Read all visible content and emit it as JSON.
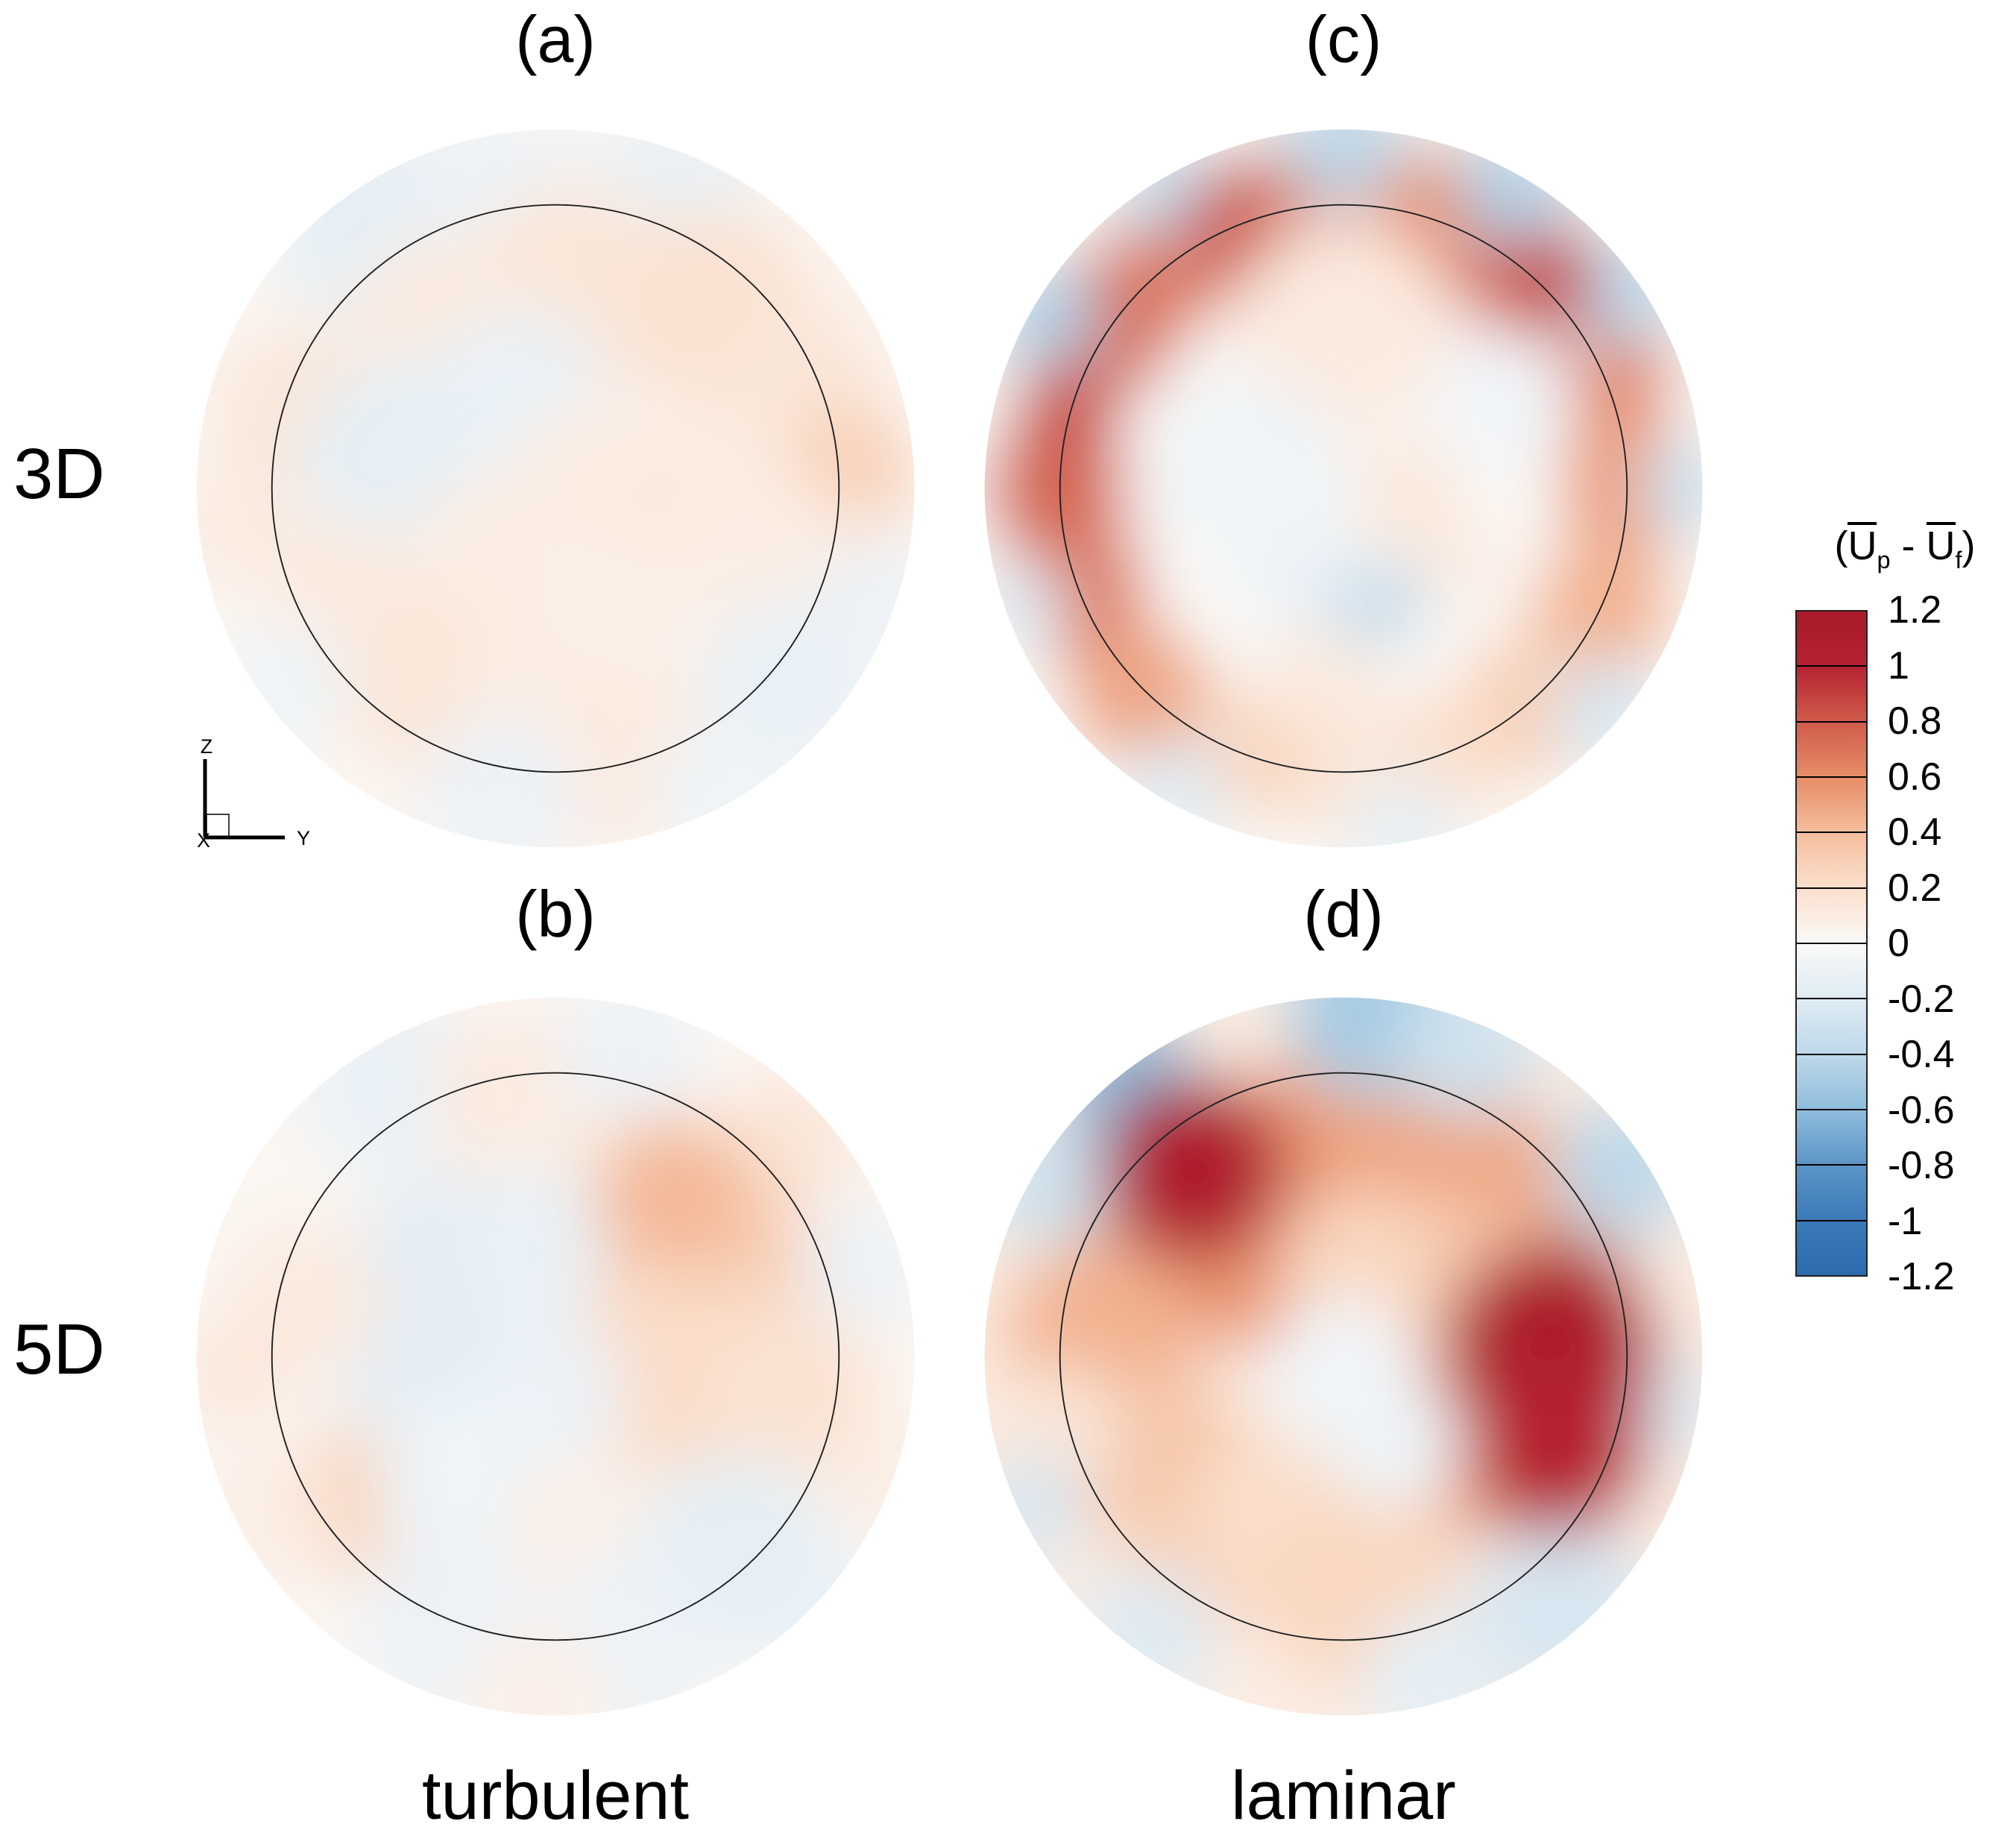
{
  "figure": {
    "labels": {
      "panel_a": "(a)",
      "panel_b": "(b)",
      "panel_c": "(c)",
      "panel_d": "(d)",
      "row_3d": "3D",
      "row_5d": "5D",
      "col_turbulent": "turbulent",
      "col_laminar": "laminar"
    },
    "axes_indicator": {
      "z": "Z",
      "y": "Y",
      "x": "X"
    }
  },
  "colorbar_title": {
    "open": "(",
    "u1": "U",
    "p": "p",
    "minus": " - ",
    "u2": "U",
    "f": "f",
    "close": ")"
  },
  "chart_data": {
    "type": "heatmap",
    "subtype": "circular-contour-grid",
    "quantity_label": "(Up - Uf)",
    "rows": [
      "3D",
      "5D"
    ],
    "columns": [
      "turbulent",
      "laminar"
    ],
    "inner_circle_radius_ratio": 0.79,
    "colorbar": {
      "label": "(Up - Uf)",
      "min": -1.2,
      "max": 1.2,
      "step": 0.2,
      "ticks": [
        "1.2",
        "1",
        "0.8",
        "0.6",
        "0.4",
        "0.2",
        "0",
        "-0.2",
        "-0.4",
        "-0.6",
        "-0.8",
        "-1",
        "-1.2"
      ],
      "colormap_stops": [
        [
          -1.2,
          "#2C6BAD"
        ],
        [
          -1.0,
          "#3A7AB8"
        ],
        [
          -0.8,
          "#5B94C6"
        ],
        [
          -0.6,
          "#8FBDDC"
        ],
        [
          -0.4,
          "#BDD8E9"
        ],
        [
          -0.2,
          "#DFEBF3"
        ],
        [
          -0.05,
          "#F2F6F9"
        ],
        [
          0.0,
          "#FAF9F7"
        ],
        [
          0.05,
          "#FBF4EF"
        ],
        [
          0.2,
          "#FADFCC"
        ],
        [
          0.4,
          "#F5BE9D"
        ],
        [
          0.6,
          "#E78C67"
        ],
        [
          0.8,
          "#D05B4B"
        ],
        [
          1.0,
          "#B52232"
        ],
        [
          1.2,
          "#A9192A"
        ]
      ]
    },
    "outline_color": "#222222",
    "blur": 0.09,
    "blob_format": "[cx, cy, radius, value] in unit-circle coordinates (y positive downward), value in colorbar units",
    "panels": [
      {
        "id": "a",
        "label": "(a)",
        "row": "3D",
        "column": "turbulent",
        "base_value": 0.03,
        "blobs": [
          [
            -0.5,
            -0.72,
            0.28,
            -0.15
          ],
          [
            -0.15,
            -0.82,
            0.22,
            -0.1
          ],
          [
            0.32,
            -0.8,
            0.25,
            -0.12
          ],
          [
            0.05,
            -0.55,
            0.3,
            0.15
          ],
          [
            -0.32,
            -0.45,
            0.25,
            0.12
          ],
          [
            0.45,
            -0.5,
            0.28,
            0.18
          ],
          [
            0.7,
            -0.3,
            0.22,
            0.15
          ],
          [
            0.82,
            -0.05,
            0.18,
            0.3
          ],
          [
            -0.7,
            -0.2,
            0.25,
            0.15
          ],
          [
            -0.9,
            0.1,
            0.16,
            0.12
          ],
          [
            -0.4,
            -0.05,
            0.32,
            -0.15
          ],
          [
            -0.1,
            -0.25,
            0.25,
            -0.12
          ],
          [
            0.1,
            -0.05,
            0.2,
            0.1
          ],
          [
            0.35,
            0.05,
            0.25,
            0.12
          ],
          [
            0.6,
            0.2,
            0.25,
            0.1
          ],
          [
            -0.15,
            0.2,
            0.25,
            0.1
          ],
          [
            -0.6,
            0.3,
            0.22,
            0.12
          ],
          [
            -0.35,
            0.55,
            0.25,
            0.15
          ],
          [
            0.0,
            0.5,
            0.25,
            0.1
          ],
          [
            0.3,
            0.45,
            0.22,
            0.08
          ],
          [
            0.65,
            0.55,
            0.25,
            -0.12
          ],
          [
            0.9,
            0.3,
            0.16,
            -0.1
          ],
          [
            0.15,
            0.75,
            0.25,
            0.12
          ],
          [
            -0.15,
            0.85,
            0.22,
            -0.1
          ],
          [
            0.45,
            0.85,
            0.18,
            -0.08
          ],
          [
            -0.75,
            0.55,
            0.18,
            -0.08
          ]
        ]
      },
      {
        "id": "c",
        "label": "(c)",
        "row": "3D",
        "column": "laminar",
        "base_value": 0.0,
        "blobs": [
          [
            0.0,
            -0.8,
            0.22,
            0.7
          ],
          [
            0.27,
            -0.75,
            0.2,
            0.6
          ],
          [
            0.51,
            -0.61,
            0.2,
            0.75
          ],
          [
            0.72,
            -0.34,
            0.2,
            0.65
          ],
          [
            0.8,
            0.0,
            0.2,
            0.55
          ],
          [
            0.72,
            0.34,
            0.2,
            0.45
          ],
          [
            0.51,
            0.61,
            0.2,
            0.3
          ],
          [
            0.27,
            0.75,
            0.18,
            0.2
          ],
          [
            0.0,
            0.8,
            0.2,
            0.15
          ],
          [
            -0.27,
            0.75,
            0.18,
            0.25
          ],
          [
            -0.57,
            0.57,
            0.2,
            0.5
          ],
          [
            -0.75,
            0.27,
            0.2,
            0.7
          ],
          [
            -0.8,
            0.0,
            0.2,
            0.75
          ],
          [
            -0.65,
            -0.46,
            0.2,
            0.75
          ],
          [
            -0.46,
            -0.66,
            0.2,
            0.7
          ],
          [
            -0.27,
            -0.76,
            0.18,
            0.75
          ],
          [
            -0.14,
            -0.79,
            0.15,
            0.7
          ],
          [
            0.0,
            -0.97,
            0.18,
            -0.4
          ],
          [
            0.47,
            -0.84,
            0.16,
            -0.45
          ],
          [
            0.78,
            -0.55,
            0.16,
            -0.4
          ],
          [
            0.96,
            0.0,
            0.14,
            -0.3
          ],
          [
            0.73,
            0.62,
            0.15,
            -0.25
          ],
          [
            0.16,
            0.95,
            0.15,
            -0.15
          ],
          [
            -0.47,
            0.84,
            0.15,
            -0.2
          ],
          [
            -0.9,
            0.33,
            0.13,
            -0.2
          ],
          [
            -0.83,
            -0.48,
            0.15,
            -0.45
          ],
          [
            -0.48,
            -0.83,
            0.15,
            -0.35
          ],
          [
            0.0,
            -0.45,
            0.3,
            0.12
          ],
          [
            -0.25,
            -0.05,
            0.25,
            -0.08
          ],
          [
            0.18,
            0.02,
            0.15,
            0.15
          ],
          [
            0.28,
            0.18,
            0.15,
            0.12
          ],
          [
            -0.05,
            0.5,
            0.18,
            0.12
          ],
          [
            0.45,
            -0.25,
            0.2,
            -0.06
          ],
          [
            -0.12,
            0.25,
            0.15,
            -0.1
          ],
          [
            0.1,
            0.32,
            0.13,
            -0.35
          ],
          [
            0.57,
            -0.57,
            0.13,
            0.9
          ],
          [
            -0.77,
            -0.21,
            0.15,
            0.85
          ],
          [
            -0.34,
            -0.73,
            0.12,
            0.85
          ]
        ]
      },
      {
        "id": "b",
        "label": "(b)",
        "row": "5D",
        "column": "turbulent",
        "base_value": 0.03,
        "blobs": [
          [
            -0.45,
            -0.75,
            0.25,
            -0.12
          ],
          [
            -0.1,
            -0.7,
            0.25,
            0.12
          ],
          [
            0.2,
            -0.85,
            0.2,
            -0.1
          ],
          [
            0.05,
            -0.45,
            0.25,
            0.1
          ],
          [
            0.65,
            -0.6,
            0.2,
            0.15
          ],
          [
            0.85,
            -0.25,
            0.18,
            -0.1
          ],
          [
            -0.25,
            -0.1,
            0.4,
            -0.18
          ],
          [
            -0.05,
            -0.28,
            0.25,
            -0.12
          ],
          [
            -0.7,
            -0.15,
            0.22,
            0.12
          ],
          [
            -0.9,
            0.05,
            0.15,
            0.15
          ],
          [
            0.42,
            -0.28,
            0.28,
            0.3
          ],
          [
            0.33,
            -0.45,
            0.22,
            0.42
          ],
          [
            0.3,
            0.05,
            0.3,
            0.22
          ],
          [
            0.65,
            0.1,
            0.25,
            0.18
          ],
          [
            0.9,
            0.35,
            0.15,
            0.1
          ],
          [
            -0.55,
            0.4,
            0.2,
            0.28
          ],
          [
            -0.8,
            0.45,
            0.18,
            0.1
          ],
          [
            -0.2,
            0.35,
            0.3,
            -0.08
          ],
          [
            0.1,
            0.5,
            0.25,
            0.08
          ],
          [
            0.5,
            0.55,
            0.28,
            -0.15
          ],
          [
            0.2,
            0.8,
            0.25,
            -0.1
          ],
          [
            -0.3,
            0.75,
            0.25,
            -0.1
          ],
          [
            -0.05,
            0.95,
            0.2,
            0.08
          ],
          [
            0.75,
            0.75,
            0.2,
            -0.12
          ],
          [
            0.0,
            0.1,
            0.2,
            -0.1
          ]
        ]
      },
      {
        "id": "d",
        "label": "(d)",
        "row": "5D",
        "column": "laminar",
        "base_value": 0.1,
        "blobs": [
          [
            0.0,
            -0.55,
            0.34,
            0.45
          ],
          [
            -0.3,
            -0.4,
            0.38,
            0.55
          ],
          [
            -0.58,
            -0.32,
            0.24,
            0.6
          ],
          [
            0.3,
            -0.5,
            0.3,
            0.5
          ],
          [
            0.55,
            -0.35,
            0.25,
            0.5
          ],
          [
            0.45,
            0.1,
            0.4,
            0.55
          ],
          [
            -0.68,
            -0.05,
            0.27,
            0.45
          ],
          [
            -0.5,
            0.3,
            0.25,
            0.35
          ],
          [
            -0.4,
            0.55,
            0.22,
            0.3
          ],
          [
            -0.15,
            0.42,
            0.25,
            0.2
          ],
          [
            0.05,
            0.65,
            0.28,
            0.25
          ],
          [
            -0.8,
            0.2,
            0.18,
            0.15
          ],
          [
            0.3,
            -0.2,
            0.25,
            0.35
          ],
          [
            0.05,
            -0.25,
            0.22,
            0.25
          ],
          [
            0.0,
            0.05,
            0.22,
            -0.06
          ],
          [
            0.15,
            0.25,
            0.18,
            -0.08
          ],
          [
            -0.6,
            -0.76,
            0.2,
            -0.6
          ],
          [
            -0.82,
            -0.48,
            0.18,
            -0.3
          ],
          [
            0.08,
            -0.96,
            0.24,
            -0.5
          ],
          [
            0.35,
            -0.86,
            0.2,
            -0.3
          ],
          [
            0.78,
            -0.52,
            0.2,
            -0.4
          ],
          [
            0.94,
            0.15,
            0.14,
            -0.2
          ],
          [
            0.6,
            0.7,
            0.25,
            -0.25
          ],
          [
            0.25,
            0.9,
            0.2,
            -0.15
          ],
          [
            -0.55,
            0.78,
            0.2,
            -0.2
          ],
          [
            -0.87,
            0.42,
            0.15,
            -0.25
          ],
          [
            -0.42,
            -0.52,
            0.26,
            1.1
          ],
          [
            0.58,
            -0.02,
            0.3,
            1.15
          ],
          [
            0.6,
            0.25,
            0.25,
            1.0
          ]
        ]
      }
    ]
  }
}
